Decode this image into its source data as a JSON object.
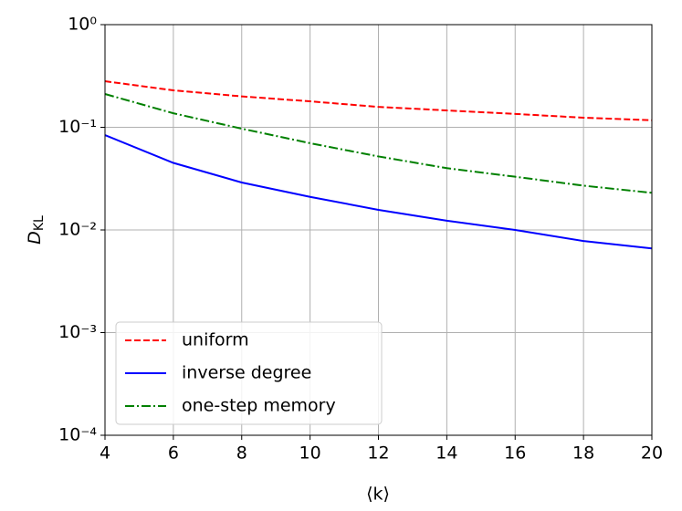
{
  "chart_data": {
    "type": "line",
    "xlabel": "⟨k⟩",
    "ylabel": "D_KL",
    "x": [
      4,
      6,
      8,
      10,
      12,
      14,
      16,
      18,
      20
    ],
    "series": [
      {
        "name": "uniform",
        "color": "#ff0000",
        "linestyle": "dashed",
        "values": [
          0.281,
          0.229,
          0.2,
          0.179,
          0.158,
          0.146,
          0.135,
          0.124,
          0.117
        ]
      },
      {
        "name": "inverse degree",
        "color": "#0000ff",
        "linestyle": "solid",
        "values": [
          0.084,
          0.045,
          0.029,
          0.021,
          0.0157,
          0.0123,
          0.01,
          0.0078,
          0.0066
        ]
      },
      {
        "name": "one-step memory",
        "color": "#008000",
        "linestyle": "dashdot",
        "values": [
          0.211,
          0.137,
          0.097,
          0.07,
          0.052,
          0.04,
          0.033,
          0.027,
          0.023
        ]
      }
    ],
    "xlim": [
      4,
      20
    ],
    "xticks": [
      4,
      6,
      8,
      10,
      12,
      14,
      16,
      18,
      20
    ],
    "ylim": [
      0.0001,
      1
    ],
    "yscale": "log",
    "yticks": [
      {
        "value": 0.0001,
        "label": "10⁻⁴"
      },
      {
        "value": 0.001,
        "label": "10⁻³"
      },
      {
        "value": 0.01,
        "label": "10⁻²"
      },
      {
        "value": 0.1,
        "label": "10⁻¹"
      },
      {
        "value": 1,
        "label": "10⁰"
      }
    ],
    "grid": true,
    "legend": "lower left"
  }
}
